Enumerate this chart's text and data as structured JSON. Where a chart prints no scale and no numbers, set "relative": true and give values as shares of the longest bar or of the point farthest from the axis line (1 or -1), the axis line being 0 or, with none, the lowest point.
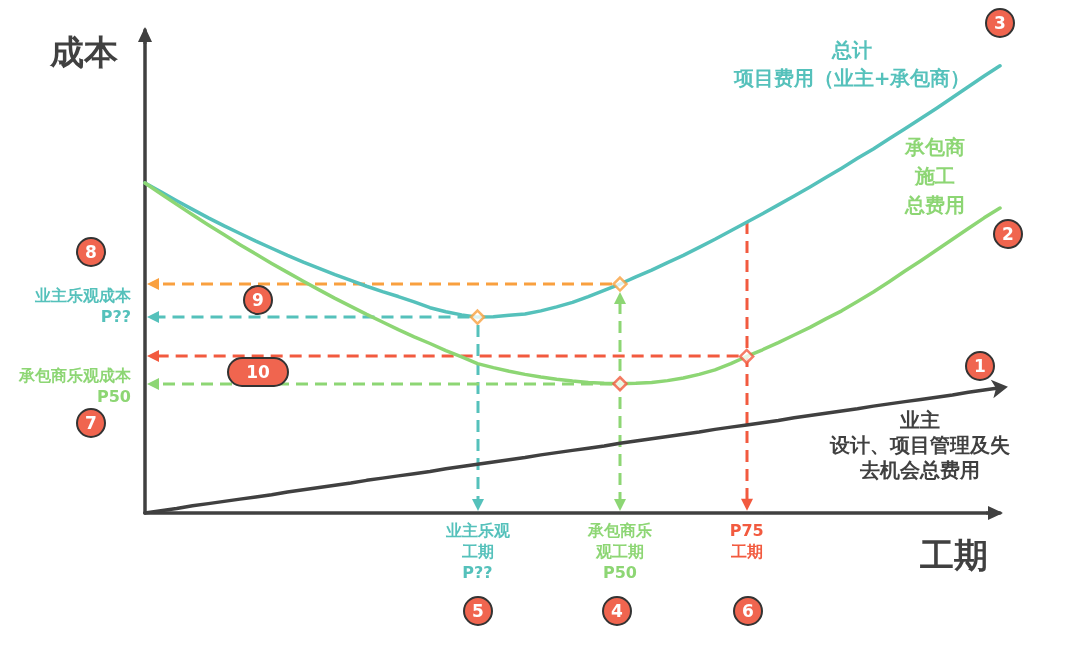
{
  "chart_data": {
    "type": "line",
    "relative": true,
    "xlabel": "工期",
    "ylabel": "成本",
    "categories": [
      null,
      null,
      null,
      null,
      null,
      null,
      null,
      null,
      null,
      null,
      null,
      null,
      null,
      null,
      null,
      null,
      null,
      null,
      null,
      null,
      null,
      "业主乐观工期P??",
      null,
      null,
      null,
      null,
      null,
      null,
      null,
      null,
      "承包商乐观工期P50",
      null,
      null,
      null,
      null,
      null,
      null,
      null,
      "P75工期",
      null,
      null,
      null,
      null,
      null,
      null,
      null,
      null,
      null,
      null,
      null,
      null,
      null,
      null,
      null,
      null
    ],
    "series": [
      {
        "name": "总计项目费用（业主+承包商）",
        "color": "#55c1bb",
        "values": [
          0.738,
          0.718,
          0.698,
          0.679,
          0.66,
          0.642,
          0.625,
          0.608,
          0.592,
          0.576,
          0.561,
          0.547,
          0.533,
          0.52,
          0.507,
          0.495,
          0.484,
          0.472,
          0.459,
          0.45,
          0.443,
          0.438,
          0.439,
          0.442,
          0.445,
          0.452,
          0.461,
          0.471,
          0.484,
          0.498,
          0.512,
          0.528,
          0.543,
          0.56,
          0.576,
          0.594,
          0.612,
          0.631,
          0.65,
          0.669,
          0.689,
          0.709,
          0.729,
          0.75,
          0.771,
          0.793,
          0.814,
          0.837,
          0.859,
          0.882,
          0.905,
          0.929,
          0.953,
          0.977,
          1
        ]
      },
      {
        "name": "承包商施工总费用",
        "color": "#8dd674",
        "values": [
          0.738,
          0.714,
          0.69,
          0.667,
          0.644,
          0.622,
          0.6,
          0.579,
          0.558,
          0.538,
          0.518,
          0.499,
          0.48,
          0.462,
          0.444,
          0.427,
          0.41,
          0.394,
          0.379,
          0.363,
          0.349,
          0.334,
          0.325,
          0.317,
          0.31,
          0.304,
          0.299,
          0.295,
          0.292,
          0.29,
          0.289,
          0.29,
          0.292,
          0.296,
          0.302,
          0.31,
          0.32,
          0.334,
          0.35,
          0.365,
          0.381,
          0.398,
          0.415,
          0.434,
          0.452,
          0.473,
          0.494,
          0.517,
          0.541,
          0.564,
          0.588,
          0.612,
          0.636,
          0.66,
          0.682
        ]
      },
      {
        "name": "业主设计、项目管理及失去机会总费用",
        "color": "#404040",
        "values": [
          0,
          0.005,
          0.01,
          0.016,
          0.021,
          0.026,
          0.031,
          0.036,
          0.041,
          0.047,
          0.052,
          0.057,
          0.062,
          0.067,
          0.073,
          0.078,
          0.083,
          0.088,
          0.093,
          0.099,
          0.104,
          0.109,
          0.114,
          0.119,
          0.124,
          0.13,
          0.135,
          0.14,
          0.145,
          0.15,
          0.156,
          0.161,
          0.166,
          0.171,
          0.176,
          0.181,
          0.187,
          0.192,
          0.197,
          0.202,
          0.207,
          0.213,
          0.218,
          0.223,
          0.228,
          0.233,
          0.239,
          0.244,
          0.249,
          0.254,
          0.259,
          0.264,
          0.27,
          0.275,
          0.28
        ]
      },
      {
        "type": "scatter",
        "marker": "diamond",
        "color": "#f9a03f",
        "values": [
          null,
          null,
          null,
          null,
          null,
          null,
          null,
          null,
          null,
          null,
          null,
          null,
          null,
          null,
          null,
          null,
          null,
          null,
          null,
          null,
          null,
          0.438,
          null,
          null,
          null,
          null,
          null,
          null,
          null,
          null,
          0.512,
          null,
          null,
          null,
          null,
          null,
          null,
          null,
          null,
          null,
          null,
          null,
          null,
          null,
          null,
          null,
          null,
          null,
          null,
          null,
          null,
          null,
          null,
          null,
          null
        ]
      },
      {
        "type": "scatter",
        "marker": "diamond",
        "color": "#f25a3f",
        "values": [
          null,
          null,
          null,
          null,
          null,
          null,
          null,
          null,
          null,
          null,
          null,
          null,
          null,
          null,
          null,
          null,
          null,
          null,
          null,
          null,
          null,
          null,
          null,
          null,
          null,
          null,
          null,
          null,
          null,
          null,
          0.289,
          null,
          null,
          null,
          null,
          null,
          null,
          null,
          0.35,
          null,
          null,
          null,
          null,
          null,
          null,
          null,
          null,
          null,
          null,
          null,
          null,
          null,
          null,
          null,
          null
        ]
      }
    ],
    "annotations": [
      "1",
      "2",
      "3",
      "4",
      "5",
      "6",
      "7",
      "8",
      "9",
      "10",
      "业主乐观成本P??",
      "承包商乐观成本P50"
    ]
  }
}
